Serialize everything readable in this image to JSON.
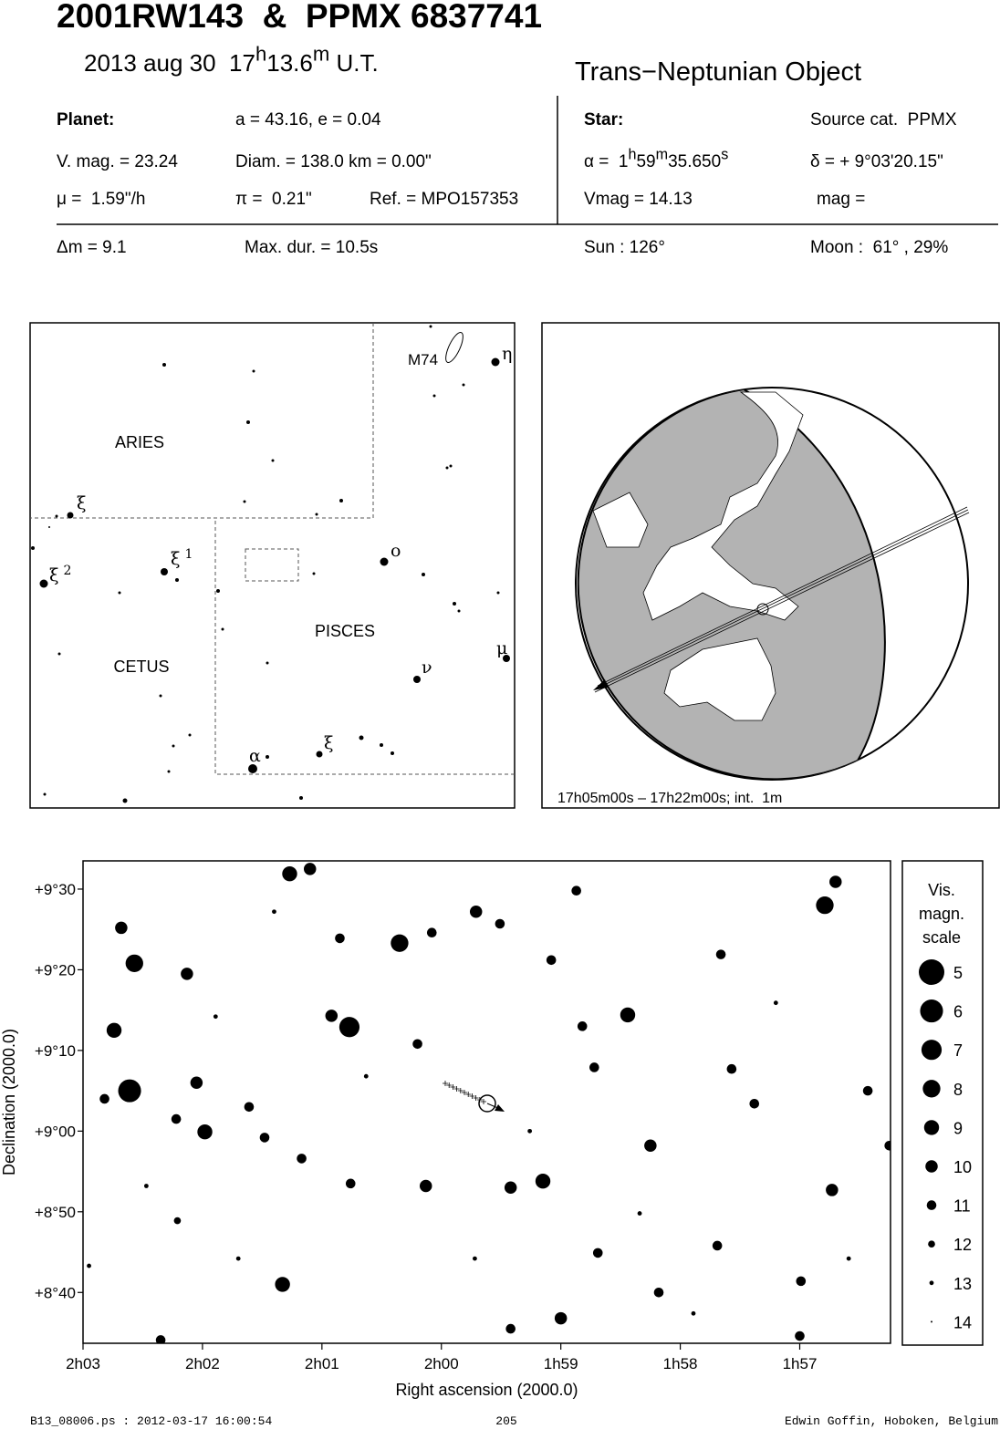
{
  "header": {
    "title": "2001RW143  &  PPMX 6837741",
    "time": [
      "2013 aug 30  17",
      "h",
      "13.6",
      "m",
      " U.T."
    ],
    "object_type": "Trans−Neptunian Object"
  },
  "planet": {
    "label": "Planet:",
    "orbit": "a = 43.16, e = 0.04",
    "vmag": "V. mag. = 23.24",
    "diam": "Diam. = 138.0 km = 0.00\"",
    "motion": "μ =  1.59\"/h",
    "parallax": "π =  0.21\"",
    "ref": "Ref. = MPO157353"
  },
  "star": {
    "label": "Star:",
    "source": "Source cat.  PPMX",
    "ra": [
      "α =  1",
      "h",
      "59",
      "m",
      "35.650",
      "s"
    ],
    "dec": "δ = + 9°03'20.15\"",
    "vmag": "Vmag = 14.13",
    "mag": "mag ="
  },
  "event": {
    "dm": "Δm = 9.1",
    "max_dur": "Max. dur. = 10.5s",
    "sun": "Sun : 126°",
    "moon": "Moon :  61° , 29%"
  },
  "finder": {
    "constellations": [
      "ARIES",
      "CETUS",
      "PISCES"
    ],
    "object": "M74",
    "star_labels": [
      {
        "name": "η"
      },
      {
        "name": "ξ"
      },
      {
        "name": "ξ",
        "sup": "2"
      },
      {
        "name": "ξ",
        "sup": "1"
      },
      {
        "name": "ο"
      },
      {
        "name": "μ"
      },
      {
        "name": "ν"
      },
      {
        "name": "α"
      },
      {
        "name": "ξ"
      }
    ]
  },
  "globe": {
    "caption": "17h05m00s – 17h22m00s; int.  1m"
  },
  "chart_data": {
    "type": "scatter",
    "x_label": "Right ascension (2000.0)",
    "y_label": "Declination (2000.0)",
    "color": "#000000",
    "xlim": [
      123,
      116.24
    ],
    "ylim": [
      513.7,
      573.5
    ],
    "xticks": [
      {
        "value": 123,
        "label": "2h03"
      },
      {
        "value": 122,
        "label": "2h02"
      },
      {
        "value": 121,
        "label": "2h01"
      },
      {
        "value": 120,
        "label": "2h00"
      },
      {
        "value": 119,
        "label": "1h59"
      },
      {
        "value": 118,
        "label": "1h58"
      },
      {
        "value": 117,
        "label": "1h57"
      }
    ],
    "yticks": [
      {
        "value": 570,
        "label": "+9°30"
      },
      {
        "value": 560,
        "label": "+9°20"
      },
      {
        "value": 550,
        "label": "+9°10"
      },
      {
        "value": 540,
        "label": "+9°00"
      },
      {
        "value": 530,
        "label": "+8°50"
      },
      {
        "value": 520,
        "label": "+8°40"
      }
    ],
    "x": [
      122.61,
      122.57,
      120.77,
      120.35,
      121.27,
      121.1,
      116.79,
      116.7,
      122.74,
      122.68,
      122.13,
      121.98,
      122.05,
      122.82,
      121.33,
      119.15,
      118.44,
      119.0,
      118.25,
      120.13,
      119.42,
      119.71,
      120.92,
      116.73,
      118.72,
      117.57,
      117.38,
      117.66,
      116.99,
      116.25,
      116.43,
      118.87,
      119.51,
      120.08,
      120.85,
      121.48,
      121.17,
      120.76,
      119.42,
      122.35,
      117.0,
      118.18,
      118.69,
      117.69,
      122.21,
      119.08,
      122.22,
      121.61,
      120.2,
      118.82,
      122.95,
      121.89,
      121.4,
      120.63,
      119.72,
      118.34,
      117.2,
      116.59,
      122.47,
      117.89,
      119.26,
      121.7
    ],
    "y": [
      545.0,
      560.8,
      552.9,
      563.3,
      571.9,
      572.5,
      568.0,
      570.9,
      552.5,
      565.2,
      559.5,
      539.9,
      546.0,
      544.0,
      521.0,
      533.8,
      554.4,
      516.8,
      538.2,
      533.2,
      533.0,
      567.2,
      554.3,
      532.7,
      547.9,
      547.7,
      543.4,
      561.9,
      521.4,
      538.2,
      545.0,
      569.8,
      565.7,
      564.6,
      563.9,
      539.2,
      536.6,
      533.5,
      515.5,
      514.1,
      514.6,
      520.0,
      524.9,
      525.8,
      528.9,
      561.2,
      541.5,
      543.0,
      550.8,
      553.0,
      523.3,
      554.2,
      567.2,
      546.8,
      524.2,
      529.8,
      555.9,
      524.2,
      533.2,
      517.4,
      540.0,
      524.2
    ],
    "magnitudes": [
      6,
      8,
      7,
      8,
      9,
      10,
      8,
      10,
      9,
      10,
      10,
      9,
      10,
      11,
      9,
      9,
      9,
      10,
      10,
      10,
      10,
      10,
      10,
      10,
      11,
      11,
      11,
      11,
      11,
      11,
      11,
      11,
      11,
      11,
      11,
      11,
      11,
      11,
      11,
      11,
      11,
      11,
      11,
      11,
      12,
      11,
      11,
      11,
      11,
      11,
      13,
      13,
      13,
      13,
      13,
      13,
      13,
      13,
      13,
      13,
      13,
      13
    ],
    "legend": {
      "title": [
        "Vis.",
        "magn.",
        "scale"
      ],
      "magnitudes": [
        5,
        6,
        7,
        8,
        9,
        10,
        11,
        12,
        13,
        14
      ]
    }
  },
  "footer": {
    "file": "B13_08006.ps : 2012-03-17 16:00:54",
    "page": "205",
    "author": "Edwin Goffin, Hoboken, Belgium"
  }
}
